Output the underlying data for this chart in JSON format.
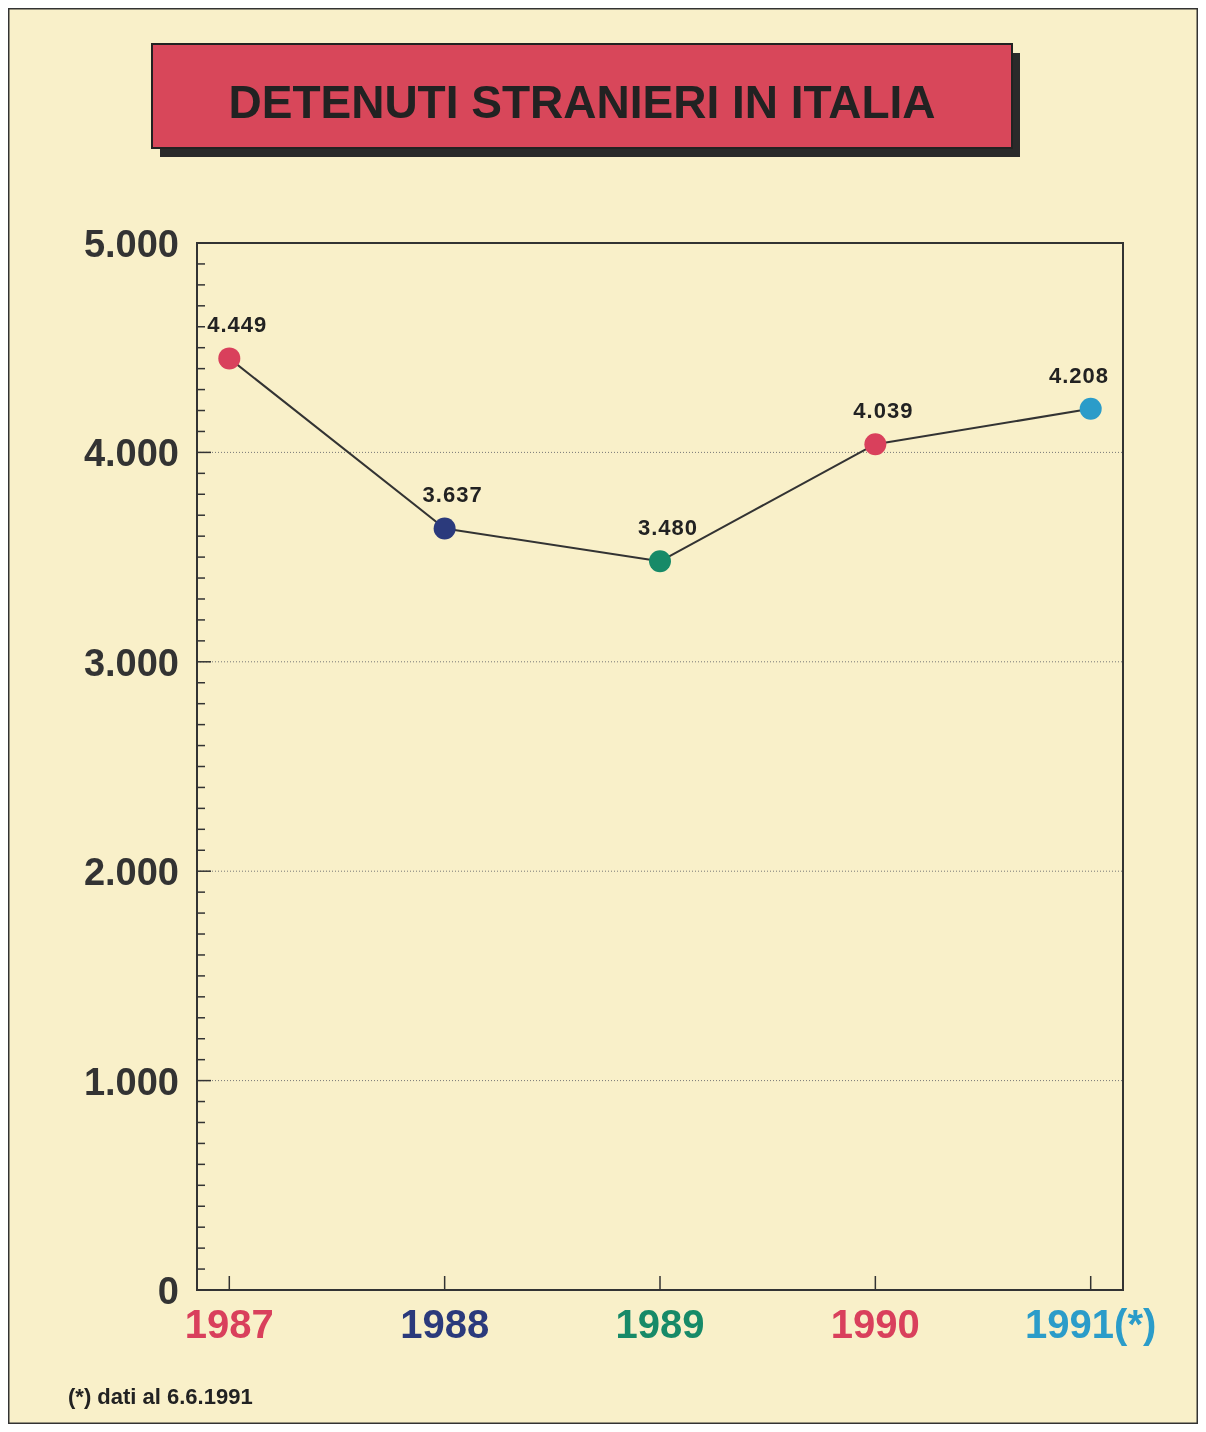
{
  "chart_data": {
    "type": "line",
    "title": "DETENUTI STRANIERI IN ITALIA",
    "categories": [
      "1987",
      "1988",
      "1989",
      "1990",
      "1991(*)"
    ],
    "series": [
      {
        "color": "#333333",
        "colors": [
          "#d9405c",
          "#2b3a7c",
          "#178a68",
          "#d9405c",
          "#2b9cc9"
        ],
        "values": [
          4449,
          3637,
          3480,
          4039,
          4208
        ],
        "value_labels": [
          "4.449",
          "3.637",
          "3.480",
          "4.039",
          "4.208"
        ]
      }
    ],
    "ylim": [
      0,
      5000
    ],
    "yticks": [
      {
        "value": 0,
        "label": "0"
      },
      {
        "value": 100,
        "label": null
      },
      {
        "value": 200,
        "label": null
      },
      {
        "value": 300,
        "label": null
      },
      {
        "value": 400,
        "label": null
      },
      {
        "value": 500,
        "label": null
      },
      {
        "value": 600,
        "label": null
      },
      {
        "value": 700,
        "label": null
      },
      {
        "value": 800,
        "label": null
      },
      {
        "value": 900,
        "label": null
      },
      {
        "value": 1000,
        "label": "1.000"
      },
      {
        "value": 1100,
        "label": null
      },
      {
        "value": 1200,
        "label": null
      },
      {
        "value": 1300,
        "label": null
      },
      {
        "value": 1400,
        "label": null
      },
      {
        "value": 1500,
        "label": null
      },
      {
        "value": 1600,
        "label": null
      },
      {
        "value": 1700,
        "label": null
      },
      {
        "value": 1800,
        "label": null
      },
      {
        "value": 1900,
        "label": null
      },
      {
        "value": 2000,
        "label": "2.000"
      },
      {
        "value": 2100,
        "label": null
      },
      {
        "value": 2200,
        "label": null
      },
      {
        "value": 2300,
        "label": null
      },
      {
        "value": 2400,
        "label": null
      },
      {
        "value": 2500,
        "label": null
      },
      {
        "value": 2600,
        "label": null
      },
      {
        "value": 2700,
        "label": null
      },
      {
        "value": 2800,
        "label": null
      },
      {
        "value": 2900,
        "label": null
      },
      {
        "value": 3000,
        "label": "3.000"
      },
      {
        "value": 3100,
        "label": null
      },
      {
        "value": 3200,
        "label": null
      },
      {
        "value": 3300,
        "label": null
      },
      {
        "value": 3400,
        "label": null
      },
      {
        "value": 3500,
        "label": null
      },
      {
        "value": 3600,
        "label": null
      },
      {
        "value": 3700,
        "label": null
      },
      {
        "value": 3800,
        "label": null
      },
      {
        "value": 3900,
        "label": null
      },
      {
        "value": 4000,
        "label": "4.000"
      },
      {
        "value": 4100,
        "label": null
      },
      {
        "value": 4200,
        "label": null
      },
      {
        "value": 4300,
        "label": null
      },
      {
        "value": 4400,
        "label": null
      },
      {
        "value": 4500,
        "label": null
      },
      {
        "value": 4600,
        "label": null
      },
      {
        "value": 4700,
        "label": null
      },
      {
        "value": 4800,
        "label": null
      },
      {
        "value": 4900,
        "label": null
      },
      {
        "value": 5000,
        "label": "5.000"
      }
    ],
    "grid": "y",
    "marker": "circle",
    "line_style": "solid",
    "annotations": [
      "(*) dati al 6.6.1991"
    ]
  }
}
